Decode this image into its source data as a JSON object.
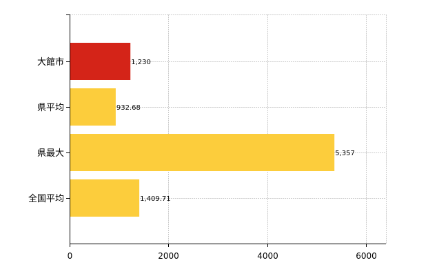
{
  "chart_data": {
    "type": "bar",
    "orientation": "horizontal",
    "categories": [
      "大館市",
      "県平均",
      "県最大",
      "全国平均"
    ],
    "values": [
      1230,
      932.68,
      5357,
      1409.71
    ],
    "value_labels": [
      "1,230",
      "932.68",
      "5,357",
      "1,409.71"
    ],
    "bar_colors": [
      "#d42418",
      "#fccd3c",
      "#fccd3c",
      "#fccd3c"
    ],
    "xlim": [
      0,
      6400
    ],
    "xticks": [
      0,
      2000,
      4000,
      6000
    ],
    "xtick_labels": [
      "0",
      "2000",
      "4000",
      "6000"
    ],
    "title": "",
    "xlabel": "",
    "ylabel": "",
    "grid": "vertical dashed",
    "legend": "none"
  }
}
